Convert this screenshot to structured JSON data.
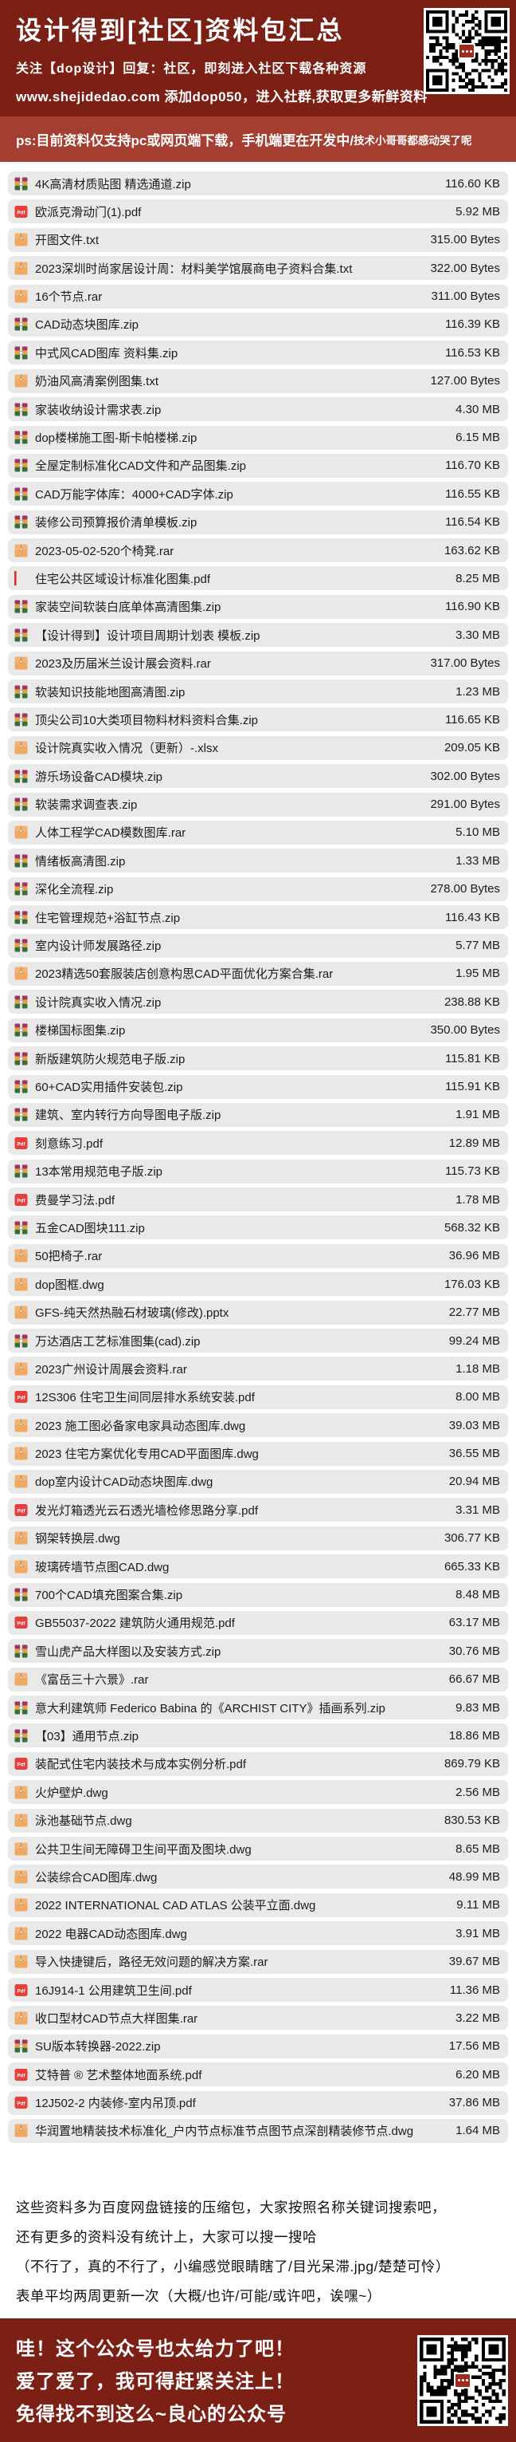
{
  "colors": {
    "header_bg": "#7c1f15",
    "ps_bg": "#a43e30",
    "row_bg": "#e9e9e9",
    "pdf_red": "#e5403d",
    "archive_tan": "#efa963",
    "text": "#1c1c1c"
  },
  "header": {
    "title": "设计得到[社区]资料包汇总",
    "subtitle": "关注【dop设计】回复：社区，即刻进入社区下载各种资源",
    "website_line": "www.shejidedao.com 添加dop050，进入社群,获取更多新鲜资料"
  },
  "ps_bar": {
    "main": "ps:目前资料仅支持pc或网页端下载，手机端更在开发中/",
    "small": "技术小哥哥都感动哭了呢"
  },
  "files": [
    {
      "name": "4K高清材质贴图 精选通道.zip",
      "size": "116.60 KB",
      "icon": "zip"
    },
    {
      "name": "欧派克滑动门(1).pdf",
      "size": "5.92 MB",
      "icon": "pdf"
    },
    {
      "name": "开图文件.txt",
      "size": "315.00 Bytes",
      "icon": "archive"
    },
    {
      "name": "2023深圳时尚家居设计周：材料美学馆展商电子资料合集.txt",
      "size": "322.00 Bytes",
      "icon": "archive"
    },
    {
      "name": "16个节点.rar",
      "size": "311.00 Bytes",
      "icon": "archive"
    },
    {
      "name": "CAD动态块图库.zip",
      "size": "116.39 KB",
      "icon": "zip"
    },
    {
      "name": "中式风CAD图库 资料集.zip",
      "size": "116.53 KB",
      "icon": "zip"
    },
    {
      "name": "奶油风高清案例图集.txt",
      "size": "127.00 Bytes",
      "icon": "archive"
    },
    {
      "name": "家装收纳设计需求表.zip",
      "size": "4.30 MB",
      "icon": "zip"
    },
    {
      "name": "dop楼梯施工图-斯卡帕楼梯.zip",
      "size": "6.15 MB",
      "icon": "zip"
    },
    {
      "name": "全屋定制标准化CAD文件和产品图集.zip",
      "size": "116.70 KB",
      "icon": "zip"
    },
    {
      "name": "CAD万能字体库：4000+CAD字体.zip",
      "size": "116.55 KB",
      "icon": "zip"
    },
    {
      "name": "装修公司预算报价清单模板.zip",
      "size": "116.54 KB",
      "icon": "zip"
    },
    {
      "name": "2023-05-02-520个椅凳.rar",
      "size": "163.62 KB",
      "icon": "archive"
    },
    {
      "name": "住宅公共区域设计标准化图集.pdf",
      "size": "8.25 MB",
      "icon": "broken"
    },
    {
      "name": "家装空间软装白底单体高清图集.zip",
      "size": "116.90 KB",
      "icon": "zip"
    },
    {
      "name": "【设计得到】设计项目周期计划表 模板.zip",
      "size": "3.30 MB",
      "icon": "zip"
    },
    {
      "name": "2023及历届米兰设计展会资料.rar",
      "size": "317.00 Bytes",
      "icon": "archive"
    },
    {
      "name": "软装知识技能地图高清图.zip",
      "size": "1.23 MB",
      "icon": "zip"
    },
    {
      "name": "顶尖公司10大类项目物料材料资料合集.zip",
      "size": "116.65 KB",
      "icon": "zip"
    },
    {
      "name": "设计院真实收入情况（更新）-.xlsx",
      "size": "209.05 KB",
      "icon": "archive"
    },
    {
      "name": "游乐场设备CAD模块.zip",
      "size": "302.00 Bytes",
      "icon": "zip"
    },
    {
      "name": "软装需求调查表.zip",
      "size": "291.00 Bytes",
      "icon": "zip"
    },
    {
      "name": "人体工程学CAD模数图库.rar",
      "size": "5.10 MB",
      "icon": "archive"
    },
    {
      "name": "情绪板高清图.zip",
      "size": "1.33 MB",
      "icon": "zip"
    },
    {
      "name": "深化全流程.zip",
      "size": "278.00 Bytes",
      "icon": "zip"
    },
    {
      "name": "住宅管理规范+浴缸节点.zip",
      "size": "116.43 KB",
      "icon": "zip"
    },
    {
      "name": "室内设计师发展路径.zip",
      "size": "5.77 MB",
      "icon": "zip"
    },
    {
      "name": "2023精选50套服装店创意构思CAD平面优化方案合集.rar",
      "size": "1.95 MB",
      "icon": "archive"
    },
    {
      "name": "设计院真实收入情况.zip",
      "size": "238.88 KB",
      "icon": "zip"
    },
    {
      "name": "楼梯国标图集.zip",
      "size": "350.00 Bytes",
      "icon": "zip"
    },
    {
      "name": "新版建筑防火规范电子版.zip",
      "size": "115.81 KB",
      "icon": "zip"
    },
    {
      "name": "60+CAD实用插件安装包.zip",
      "size": "115.91 KB",
      "icon": "zip"
    },
    {
      "name": "建筑、室内转行方向导图电子版.zip",
      "size": "1.91 MB",
      "icon": "zip"
    },
    {
      "name": "刻意练习.pdf",
      "size": "12.89 MB",
      "icon": "pdf"
    },
    {
      "name": "13本常用规范电子版.zip",
      "size": "115.73 KB",
      "icon": "zip"
    },
    {
      "name": "费曼学习法.pdf",
      "size": "1.78 MB",
      "icon": "pdf"
    },
    {
      "name": "五金CAD图块111.zip",
      "size": "568.32 KB",
      "icon": "zip"
    },
    {
      "name": "50把椅子.rar",
      "size": "36.96 MB",
      "icon": "archive"
    },
    {
      "name": "dop图框.dwg",
      "size": "176.03 KB",
      "icon": "archive"
    },
    {
      "name": "GFS-纯天然热融石材玻璃(修改).pptx",
      "size": "22.77 MB",
      "icon": "archive"
    },
    {
      "name": "万达酒店工艺标准图集(cad).zip",
      "size": "99.24 MB",
      "icon": "zip"
    },
    {
      "name": "2023广州设计周展会资料.rar",
      "size": "1.18 MB",
      "icon": "archive"
    },
    {
      "name": "12S306 住宅卫生间同层排水系统安装.pdf",
      "size": "8.00 MB",
      "icon": "pdf"
    },
    {
      "name": "2023 施工图必备家电家具动态图库.dwg",
      "size": "39.03 MB",
      "icon": "archive"
    },
    {
      "name": "2023 住宅方案优化专用CAD平面图库.dwg",
      "size": "36.55 MB",
      "icon": "archive"
    },
    {
      "name": "dop室内设计CAD动态块图库.dwg",
      "size": "20.94 MB",
      "icon": "archive"
    },
    {
      "name": "发光灯箱透光云石透光墙检修思路分享.pdf",
      "size": "3.31 MB",
      "icon": "pdf"
    },
    {
      "name": "钢架转换层.dwg",
      "size": "306.77 KB",
      "icon": "archive"
    },
    {
      "name": "玻璃砖墙节点图CAD.dwg",
      "size": "665.33 KB",
      "icon": "archive"
    },
    {
      "name": "700个CAD填充图案合集.zip",
      "size": "8.48 MB",
      "icon": "zip"
    },
    {
      "name": "GB55037-2022 建筑防火通用规范.pdf",
      "size": "63.17 MB",
      "icon": "pdf"
    },
    {
      "name": "雪山虎产品大样图以及安装方式.zip",
      "size": "30.76 MB",
      "icon": "zip"
    },
    {
      "name": "《富岳三十六景》.rar",
      "size": "66.67 MB",
      "icon": "archive"
    },
    {
      "name": "意大利建筑师 Federico Babina 的《ARCHIST CITY》插画系列.zip",
      "size": "9.83 MB",
      "icon": "zip"
    },
    {
      "name": "【03】通用节点.zip",
      "size": "18.86 MB",
      "icon": "zip"
    },
    {
      "name": "装配式住宅内装技术与成本实例分析.pdf",
      "size": "869.79 KB",
      "icon": "pdf"
    },
    {
      "name": "火炉壁炉.dwg",
      "size": "2.56 MB",
      "icon": "archive"
    },
    {
      "name": "泳池基础节点.dwg",
      "size": "830.53 KB",
      "icon": "archive"
    },
    {
      "name": "公共卫生间无障碍卫生间平面及图块.dwg",
      "size": "8.65 MB",
      "icon": "archive"
    },
    {
      "name": "公装综合CAD图库.dwg",
      "size": "48.99 MB",
      "icon": "archive"
    },
    {
      "name": "2022 INTERNATIONAL CAD ATLAS 公装平立面.dwg",
      "size": "9.11 MB",
      "icon": "archive"
    },
    {
      "name": "2022 电器CAD动态图库.dwg",
      "size": "3.91 MB",
      "icon": "archive"
    },
    {
      "name": "导入快捷键后，路径无效问题的解决方案.rar",
      "size": "39.67 MB",
      "icon": "archive"
    },
    {
      "name": "16J914-1 公用建筑卫生间.pdf",
      "size": "11.36 MB",
      "icon": "pdf"
    },
    {
      "name": "收口型材CAD节点大样图集.rar",
      "size": "3.22 MB",
      "icon": "archive"
    },
    {
      "name": "SU版本转换器-2022.zip",
      "size": "17.56 MB",
      "icon": "zip"
    },
    {
      "name": "艾特普 ® 艺术整体地面系统.pdf",
      "size": "6.20 MB",
      "icon": "pdf"
    },
    {
      "name": "12J502-2 内装修-室内吊顶.pdf",
      "size": "37.86 MB",
      "icon": "pdf"
    },
    {
      "name": "华润置地精装技术标准化_户内节点标准节点图节点深剖精装修节点.dwg",
      "size": "1.64 MB",
      "icon": "archive"
    }
  ],
  "notes": {
    "lines": [
      "这些资料多为百度网盘链接的压缩包，大家按照名称关键词搜索吧，",
      "还有更多的资料没有统计上，大家可以搜一搜哈",
      "（不行了，真的不行了，小编感觉眼睛瞎了/目光呆滞.jpg/楚楚可怜）",
      "表单平均两周更新一次（大概/也许/可能/或许吧，诶嘿~）"
    ]
  },
  "banner": {
    "lines": [
      "哇！这个公众号也太给力了吧！",
      "爱了爱了，我可得赶紧关注上！",
      "免得找不到这么~良心的公众号"
    ]
  }
}
